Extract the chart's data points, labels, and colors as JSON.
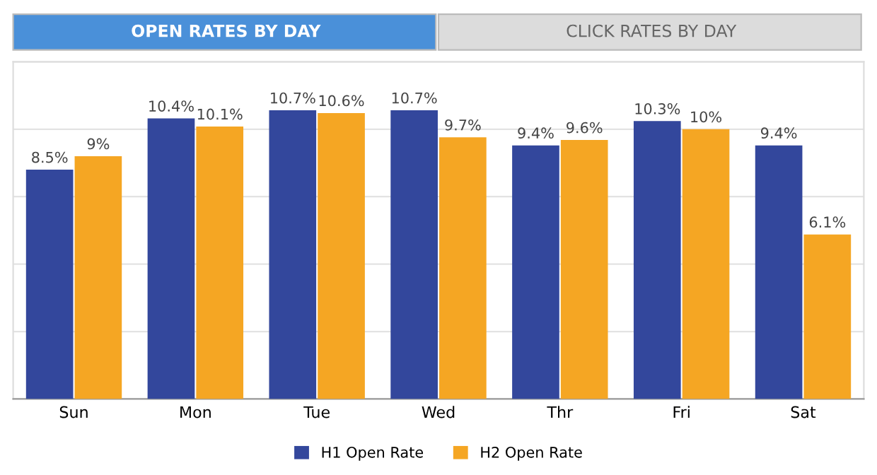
{
  "chart_data": {
    "type": "bar",
    "title": "OPEN RATES BY DAY",
    "annotations": [
      "CLICK RATES BY DAY"
    ],
    "categories": [
      "Sun",
      "Mon",
      "Tue",
      "Wed",
      "Thr",
      "Fri",
      "Sat"
    ],
    "series": [
      {
        "name": "H1 Open Rate",
        "color": "#33479c",
        "values": [
          8.5,
          10.4,
          10.7,
          10.7,
          9.4,
          10.3,
          9.4
        ],
        "value_labels": [
          "8.5%",
          "10.4%",
          "10.7%",
          "10.7%",
          "9.4%",
          "10.3%",
          "9.4%"
        ]
      },
      {
        "name": "H2 Open Rate",
        "color": "#f5a623",
        "values": [
          9,
          10.1,
          10.6,
          9.7,
          9.6,
          10,
          6.1
        ],
        "value_labels": [
          "9%",
          "10.1%",
          "10.6%",
          "9.7%",
          "9.6%",
          "10%",
          "6.1%"
        ]
      }
    ],
    "ylim": [
      0,
      12.5
    ],
    "yticks": [
      {
        "value": 0,
        "label": null
      },
      {
        "value": 2.5,
        "label": null
      },
      {
        "value": 5,
        "label": null
      },
      {
        "value": 7.5,
        "label": null
      },
      {
        "value": 10,
        "label": null
      },
      {
        "value": 12.5,
        "label": null
      }
    ],
    "grid": "y",
    "legend": "bottom",
    "tick_labels": "x"
  }
}
